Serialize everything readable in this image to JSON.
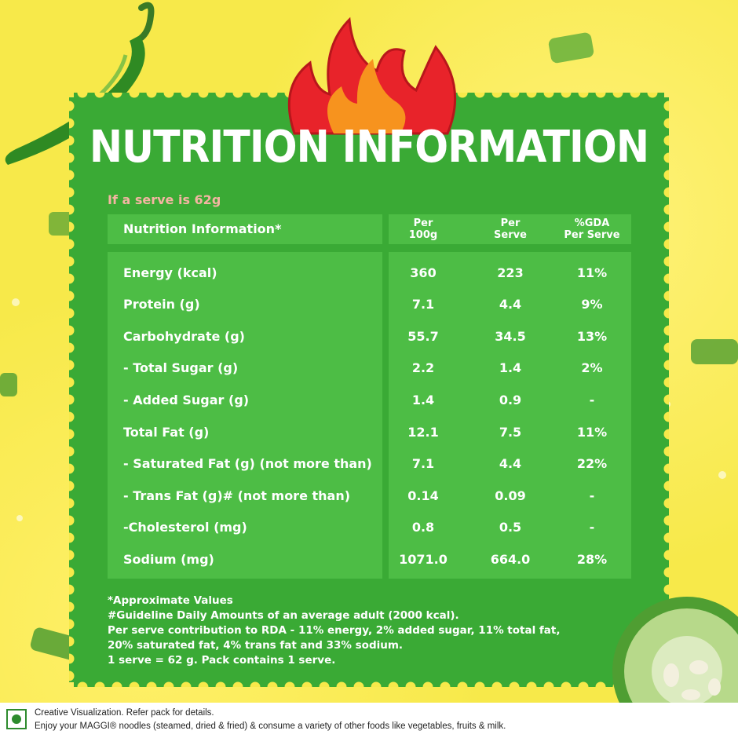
{
  "title": "NUTRITION INFORMATION",
  "serve_note": "If a serve is 62g",
  "table": {
    "header_label": "Nutrition Information*",
    "col_per100_line1": "Per",
    "col_per100_line2": "100g",
    "col_serve_line1": "Per",
    "col_serve_line2": "Serve",
    "col_gda_line1": "%GDA",
    "col_gda_line2": "Per Serve",
    "rows": [
      {
        "label": "Energy (kcal)",
        "per100": "360",
        "serve": "223",
        "gda": "11%"
      },
      {
        "label": "Protein (g)",
        "per100": "7.1",
        "serve": "4.4",
        "gda": "9%"
      },
      {
        "label": "Carbohydrate (g)",
        "per100": "55.7",
        "serve": "34.5",
        "gda": "13%"
      },
      {
        "label": " - Total Sugar (g)",
        "per100": "2.2",
        "serve": "1.4",
        "gda": "2%"
      },
      {
        "label": " - Added Sugar (g)",
        "per100": "1.4",
        "serve": "0.9",
        "gda": "-"
      },
      {
        "label": "Total Fat (g)",
        "per100": "12.1",
        "serve": "7.5",
        "gda": "11%"
      },
      {
        "label": " - Saturated Fat (g) (not more than)",
        "per100": "7.1",
        "serve": "4.4",
        "gda": "22%"
      },
      {
        "label": " - Trans Fat (g)# (not more than)",
        "per100": "0.14",
        "serve": "0.09",
        "gda": "-"
      },
      {
        "label": " -Cholesterol (mg)",
        "per100": "0.8",
        "serve": "0.5",
        "gda": "-"
      },
      {
        "label": "Sodium (mg)",
        "per100": "1071.0",
        "serve": "664.0",
        "gda": "28%"
      }
    ]
  },
  "footnotes": [
    "*Approximate Values",
    "#Guideline Daily Amounts of an average adult (2000 kcal).",
    "Per serve contribution to RDA - 11% energy, 2% added sugar, 11% total fat,",
    "20% saturated fat, 4% trans fat and 33% sodium.",
    "1 serve = 62 g. Pack contains 1 serve."
  ],
  "disclaimer": {
    "line1": "Creative Visualization. Refer pack for details.",
    "line2": "Enjoy your MAGGI® noodles (steamed, dried & fried) & consume a variety of other foods like vegetables, fruits & milk."
  },
  "colors": {
    "background": "#f7e94a",
    "panel": "#3aaa35",
    "table_box": "#4dbd45",
    "serve_note": "#f4b5a2",
    "flame_red": "#e8232a",
    "flame_orange": "#f7931e",
    "veg_mark": "#2e8b2e"
  },
  "icons": [
    "chili-pepper-icon",
    "flame-icon",
    "sliced-chili-icon",
    "veg-mark-icon"
  ]
}
